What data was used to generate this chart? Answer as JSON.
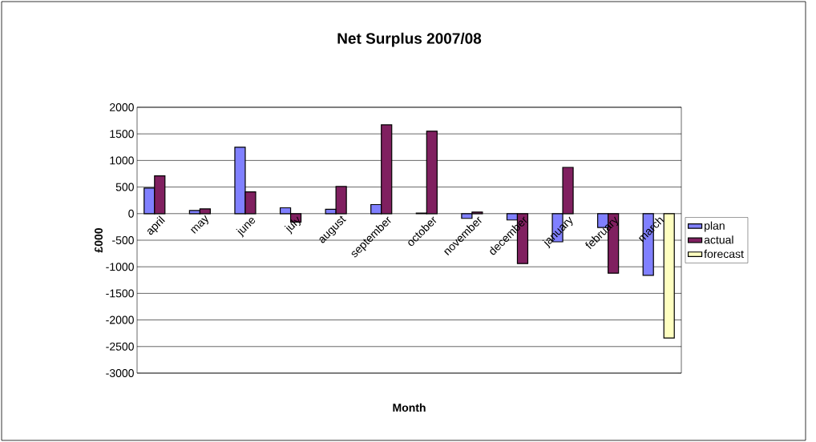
{
  "chart_data": {
    "type": "bar",
    "title": "Net Surplus 2007/08",
    "xlabel": "Month",
    "ylabel": "£000",
    "categories": [
      "april",
      "may",
      "june",
      "july",
      "august",
      "september",
      "october",
      "november",
      "december",
      "january",
      "february",
      "march"
    ],
    "series": [
      {
        "name": "plan",
        "color": "#8080ff",
        "values": [
          480,
          60,
          1250,
          110,
          80,
          170,
          10,
          -90,
          -120,
          -530,
          -260,
          -1160
        ]
      },
      {
        "name": "actual",
        "color": "#802060",
        "values": [
          710,
          90,
          410,
          -160,
          510,
          1670,
          1550,
          30,
          -940,
          870,
          -1120,
          null
        ]
      },
      {
        "name": "forecast",
        "color": "#ffffc0",
        "values": [
          null,
          null,
          null,
          null,
          null,
          null,
          null,
          null,
          null,
          null,
          null,
          -2340
        ]
      }
    ],
    "ylim": [
      -3000,
      2000
    ],
    "yticks": [
      -3000,
      -2500,
      -2000,
      -1500,
      -1000,
      -500,
      0,
      500,
      1000,
      1500,
      2000
    ],
    "grid": "y",
    "legend": "right"
  }
}
